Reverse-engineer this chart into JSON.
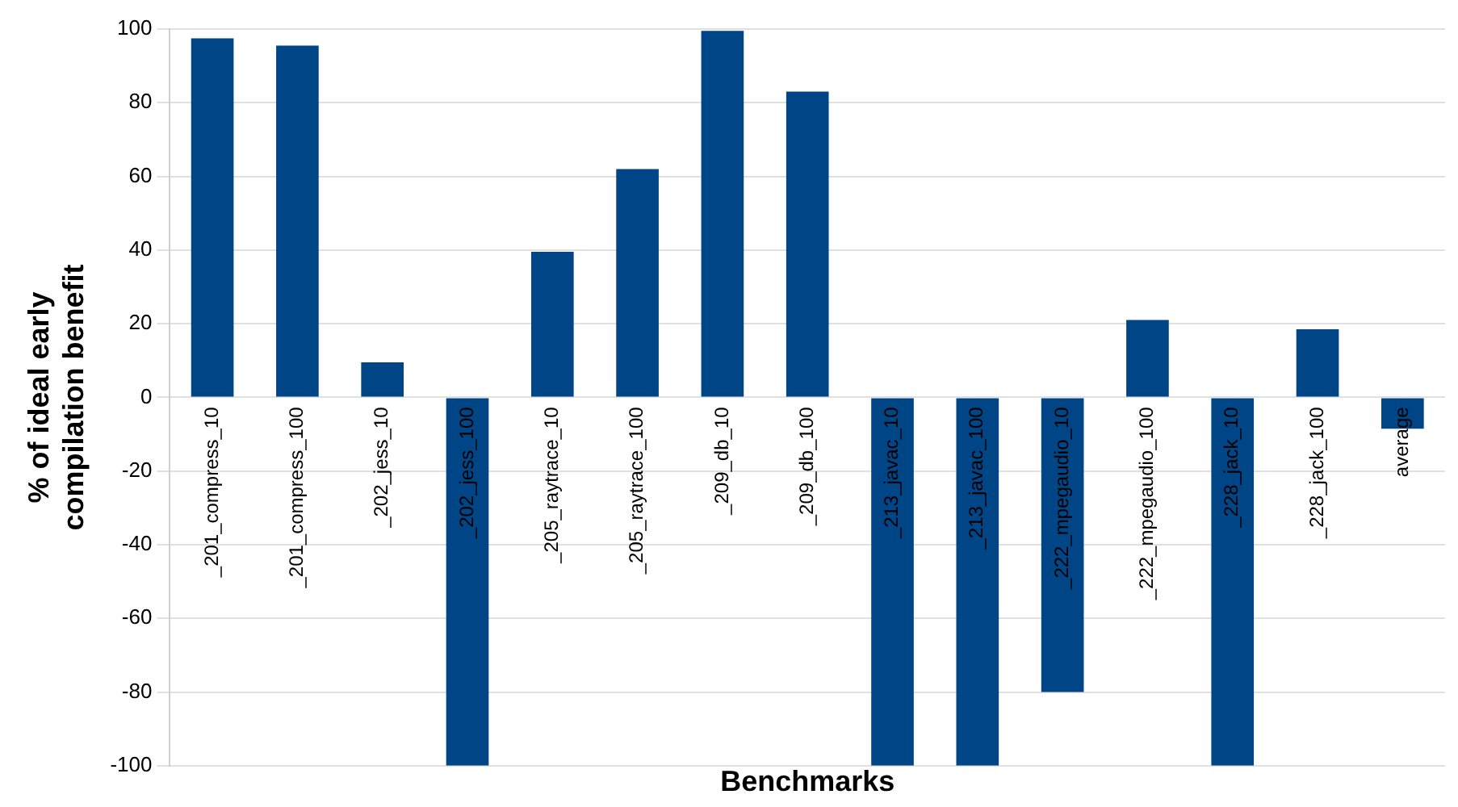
{
  "chart_data": {
    "type": "bar",
    "xlabel": "Benchmarks",
    "ylabel": "% of ideal early compilation benefit",
    "categories": [
      "_201_compress_10",
      "_201_compress_100",
      "_202_jess_10",
      "_202_jess_100",
      "_205_raytrace_10",
      "_205_raytrace_100",
      "_209_db_10",
      "_209_db_100",
      "_213_javac_10",
      "_213_javac_100",
      "_222_mpegaudio_10",
      "_222_mpegaudio_100",
      "_228_jack_10",
      "_228_jack_100",
      "average"
    ],
    "values": [
      97.5,
      95.5,
      9.5,
      -100,
      39.5,
      62,
      99.5,
      83,
      -100,
      -100,
      -80,
      21,
      -100,
      18.5,
      -8.5
    ],
    "color": "#004586",
    "ylim": [
      -100,
      100
    ],
    "yticks": [
      -100,
      -80,
      -60,
      -40,
      -20,
      0,
      20,
      40,
      60,
      80,
      100
    ],
    "grid": "y",
    "legend": false
  }
}
